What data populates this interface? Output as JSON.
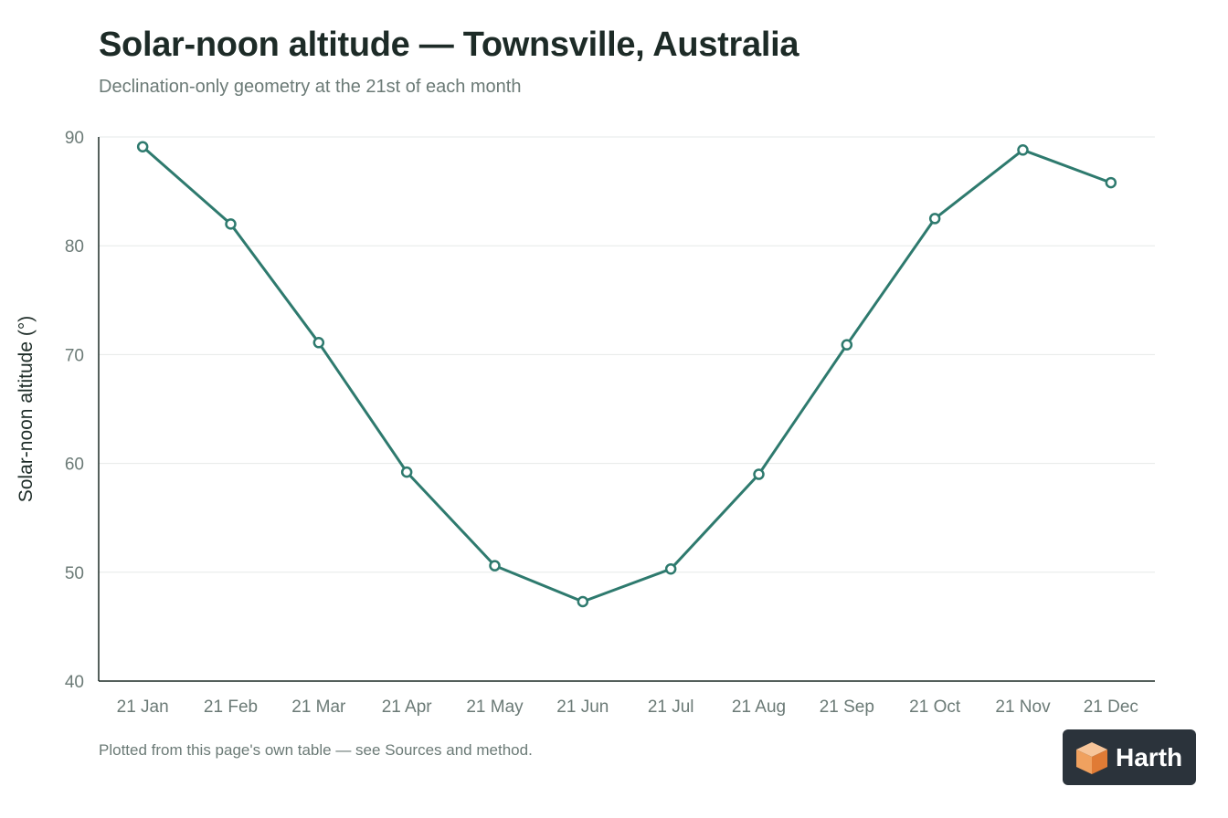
{
  "header": {
    "title": "Solar-noon altitude — Townsville, Australia",
    "subtitle": "Declination-only geometry at the 21st of each month"
  },
  "footer": {
    "note": "Plotted from this page's own table — see Sources and method."
  },
  "brand": {
    "name": "Harth",
    "icon": "house-cube-icon"
  },
  "colors": {
    "series": "#2e7a6e",
    "grid": "#e6e9e8",
    "axis": "#1d2b27",
    "tick_text": "#6b7a76"
  },
  "chart_data": {
    "type": "line",
    "title": "Solar-noon altitude — Townsville, Australia",
    "subtitle": "Declination-only geometry at the 21st of each month",
    "xlabel": "",
    "ylabel": "Solar-noon altitude (°)",
    "categories": [
      "21 Jan",
      "21 Feb",
      "21 Mar",
      "21 Apr",
      "21 May",
      "21 Jun",
      "21 Jul",
      "21 Aug",
      "21 Sep",
      "21 Oct",
      "21 Nov",
      "21 Dec"
    ],
    "series": [
      {
        "values": [
          89.1,
          82.0,
          71.1,
          59.2,
          50.6,
          47.3,
          50.3,
          59.0,
          70.9,
          82.5,
          88.8,
          85.8
        ]
      }
    ],
    "ylim": [
      40,
      90
    ],
    "yticks": [
      40,
      50,
      60,
      70,
      80,
      90
    ],
    "grid": true,
    "legend": "none"
  }
}
